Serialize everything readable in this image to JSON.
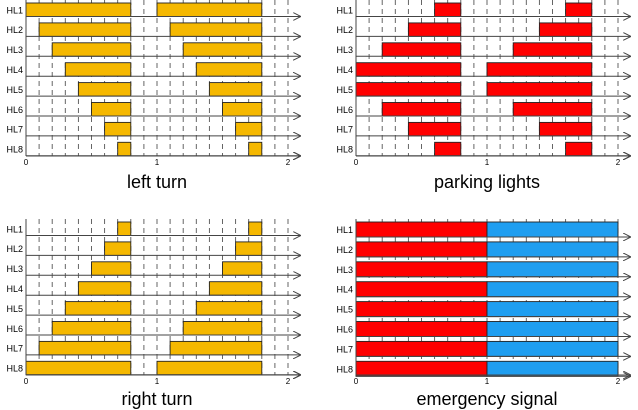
{
  "chart_data": [
    {
      "type": "bar",
      "subtype": "timing-diagram",
      "title": "left turn",
      "color": "#F5B800",
      "xlim": [
        0,
        2
      ],
      "x_ticks": [
        "0",
        "1",
        "2"
      ],
      "channels": [
        "HL1",
        "HL2",
        "HL3",
        "HL4",
        "HL5",
        "HL6",
        "HL7",
        "HL8"
      ],
      "pulses": [
        [
          [
            0.0,
            0.8
          ],
          [
            1.0,
            1.8
          ]
        ],
        [
          [
            0.1,
            0.8
          ],
          [
            1.1,
            1.8
          ]
        ],
        [
          [
            0.2,
            0.8
          ],
          [
            1.2,
            1.8
          ]
        ],
        [
          [
            0.3,
            0.8
          ],
          [
            1.3,
            1.8
          ]
        ],
        [
          [
            0.4,
            0.8
          ],
          [
            1.4,
            1.8
          ]
        ],
        [
          [
            0.5,
            0.8
          ],
          [
            1.5,
            1.8
          ]
        ],
        [
          [
            0.6,
            0.8
          ],
          [
            1.6,
            1.8
          ]
        ],
        [
          [
            0.7,
            0.8
          ],
          [
            1.7,
            1.8
          ]
        ]
      ]
    },
    {
      "type": "bar",
      "subtype": "timing-diagram",
      "title": "parking lights",
      "color": "#FF0000",
      "xlim": [
        0,
        2
      ],
      "x_ticks": [
        "0",
        "1",
        "2"
      ],
      "channels": [
        "HL1",
        "HL2",
        "HL3",
        "HL4",
        "HL5",
        "HL6",
        "HL7",
        "HL8"
      ],
      "pulses": [
        [
          [
            0.6,
            0.8
          ],
          [
            1.6,
            1.8
          ]
        ],
        [
          [
            0.4,
            0.8
          ],
          [
            1.4,
            1.8
          ]
        ],
        [
          [
            0.2,
            0.8
          ],
          [
            1.2,
            1.8
          ]
        ],
        [
          [
            0.0,
            0.8
          ],
          [
            1.0,
            1.8
          ]
        ],
        [
          [
            0.0,
            0.8
          ],
          [
            1.0,
            1.8
          ]
        ],
        [
          [
            0.2,
            0.8
          ],
          [
            1.2,
            1.8
          ]
        ],
        [
          [
            0.4,
            0.8
          ],
          [
            1.4,
            1.8
          ]
        ],
        [
          [
            0.6,
            0.8
          ],
          [
            1.6,
            1.8
          ]
        ]
      ]
    },
    {
      "type": "bar",
      "subtype": "timing-diagram",
      "title": "right turn",
      "color": "#F5B800",
      "xlim": [
        0,
        2
      ],
      "x_ticks": [
        "0",
        "1",
        "2"
      ],
      "channels": [
        "HL1",
        "HL2",
        "HL3",
        "HL4",
        "HL5",
        "HL6",
        "HL7",
        "HL8"
      ],
      "pulses": [
        [
          [
            0.7,
            0.8
          ],
          [
            1.7,
            1.8
          ]
        ],
        [
          [
            0.6,
            0.8
          ],
          [
            1.6,
            1.8
          ]
        ],
        [
          [
            0.5,
            0.8
          ],
          [
            1.5,
            1.8
          ]
        ],
        [
          [
            0.4,
            0.8
          ],
          [
            1.4,
            1.8
          ]
        ],
        [
          [
            0.3,
            0.8
          ],
          [
            1.3,
            1.8
          ]
        ],
        [
          [
            0.2,
            0.8
          ],
          [
            1.2,
            1.8
          ]
        ],
        [
          [
            0.1,
            0.8
          ],
          [
            1.1,
            1.8
          ]
        ],
        [
          [
            0.0,
            0.8
          ],
          [
            1.0,
            1.8
          ]
        ]
      ]
    },
    {
      "type": "bar",
      "subtype": "timing-diagram",
      "title": "emergency signal",
      "colors": [
        "#FF0000",
        "#1F9EF0"
      ],
      "xlim": [
        0,
        2
      ],
      "x_ticks": [
        "0",
        "1",
        "2"
      ],
      "channels": [
        "HL1",
        "HL2",
        "HL3",
        "HL4",
        "HL5",
        "HL6",
        "HL7",
        "HL8"
      ],
      "pulses": [
        [
          [
            0.0,
            1.0,
            0
          ],
          [
            1.0,
            2.0,
            1
          ]
        ],
        [
          [
            0.0,
            1.0,
            0
          ],
          [
            1.0,
            2.0,
            1
          ]
        ],
        [
          [
            0.0,
            1.0,
            0
          ],
          [
            1.0,
            2.0,
            1
          ]
        ],
        [
          [
            0.0,
            1.0,
            0
          ],
          [
            1.0,
            2.0,
            1
          ]
        ],
        [
          [
            0.0,
            1.0,
            0
          ],
          [
            1.0,
            2.0,
            1
          ]
        ],
        [
          [
            0.0,
            1.0,
            0
          ],
          [
            1.0,
            2.0,
            1
          ]
        ],
        [
          [
            0.0,
            1.0,
            0
          ],
          [
            1.0,
            2.0,
            1
          ]
        ],
        [
          [
            0.0,
            1.0,
            0
          ],
          [
            1.0,
            2.0,
            1
          ]
        ]
      ]
    }
  ]
}
